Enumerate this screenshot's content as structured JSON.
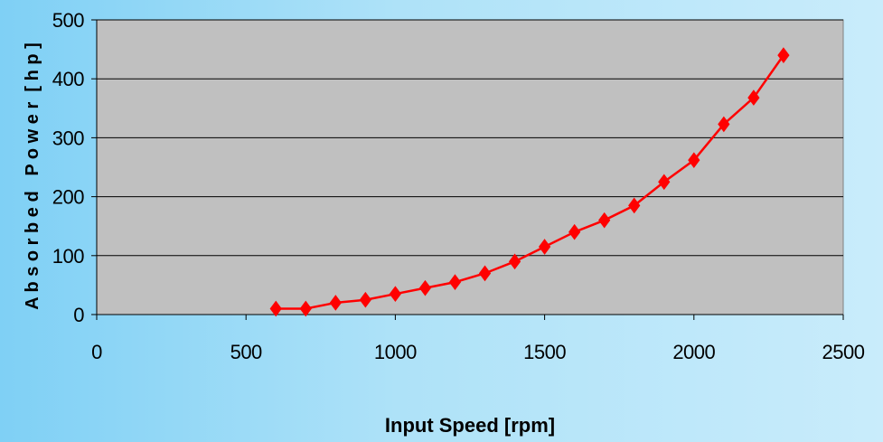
{
  "chart_data": {
    "type": "line",
    "xlabel": "Input Speed [rpm]",
    "ylabel": "A b s o r b e d   P o w e r  [ h p ]",
    "xlim": [
      0,
      2500
    ],
    "ylim": [
      0,
      500
    ],
    "xticks": [
      0,
      500,
      1000,
      1500,
      2000,
      2500
    ],
    "yticks": [
      0,
      100,
      200,
      300,
      400,
      500
    ],
    "grid": "horizontal",
    "legend": "none",
    "series": [
      {
        "x": [
          600,
          700,
          800,
          900,
          1000,
          1100,
          1200,
          1300,
          1400,
          1500,
          1600,
          1700,
          1800,
          1900,
          2000,
          2100,
          2200,
          2300
        ],
        "y": [
          10,
          10,
          20,
          25,
          35,
          45,
          55,
          70,
          90,
          115,
          140,
          160,
          185,
          225,
          262,
          323,
          368,
          440
        ],
        "color": "#ff0000",
        "marker": "diamond"
      }
    ],
    "plot_background": "#c0c0c0",
    "gridline_color": "#000000"
  }
}
